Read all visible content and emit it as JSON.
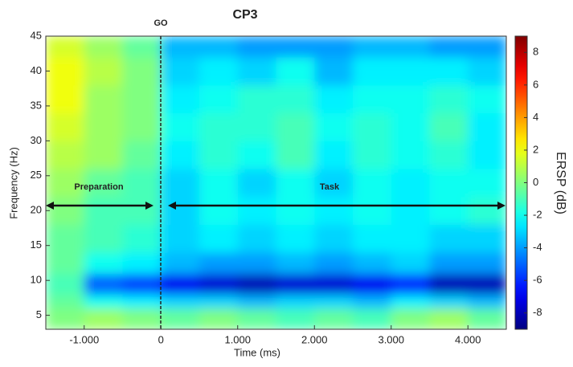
{
  "chart_data": {
    "type": "heatmap",
    "title": "CP3",
    "xlabel": "Time (ms)",
    "ylabel": "Frequency (Hz)",
    "colormap": "jet",
    "x_edges": [
      -1500,
      -1000,
      -500,
      0,
      500,
      1000,
      1500,
      2000,
      2500,
      3000,
      3500,
      4000,
      4500
    ],
    "y_edges": [
      3,
      6,
      8,
      11,
      14,
      18,
      22,
      26,
      30,
      34,
      38,
      42,
      45
    ],
    "values": [
      [
        0,
        0.5,
        0,
        -0.5,
        0,
        -0.5,
        -1,
        -0.5,
        -1,
        0,
        0.5,
        -0.5
      ],
      [
        -0.5,
        -2,
        -2.5,
        -3,
        -3,
        -3.5,
        -3,
        -3,
        -3.5,
        -2.5,
        -3,
        -3.5
      ],
      [
        -1,
        -5,
        -5.5,
        -7,
        -7.5,
        -8,
        -7.5,
        -7.5,
        -7,
        -6,
        -8,
        -8
      ],
      [
        -0.5,
        -2,
        -2.5,
        -3.5,
        -4,
        -4,
        -3.5,
        -4,
        -3.5,
        -3,
        -4,
        -4
      ],
      [
        -0.5,
        -1,
        -1.5,
        -3,
        -2.5,
        -3,
        -2.5,
        -3,
        -2.5,
        -2.5,
        -3,
        -3
      ],
      [
        0,
        -1,
        -1,
        -3,
        -2,
        -2.5,
        -2,
        -2.5,
        -2,
        -2.5,
        -2,
        -1.5
      ],
      [
        0.5,
        -0.5,
        -1,
        -3,
        -2,
        -3,
        -2,
        -3,
        -2,
        -2.5,
        -2,
        -2
      ],
      [
        1,
        0.5,
        -0.5,
        -2.5,
        -1.5,
        -2,
        -1,
        -2.5,
        -1.5,
        -2,
        -1.5,
        -2.5
      ],
      [
        1.5,
        0.5,
        0,
        -2,
        -1.5,
        -1.5,
        -1,
        -2,
        -1.5,
        -2,
        -1,
        -2.5
      ],
      [
        2,
        0.5,
        0,
        -2.5,
        -2,
        -1.5,
        -1.5,
        -2.5,
        -2,
        -2,
        -1.5,
        -2
      ],
      [
        2,
        1,
        0,
        -3,
        -2.5,
        -3,
        -2,
        -3.5,
        -2.5,
        -2.5,
        -2.5,
        -3
      ],
      [
        1.5,
        0.5,
        -0.5,
        -3.5,
        -3.5,
        -4,
        -4,
        -4,
        -3.5,
        -3.5,
        -4,
        -4
      ]
    ],
    "xlim": [
      -1500,
      4500
    ],
    "ylim": [
      3,
      45
    ],
    "xticks": [
      {
        "value": -1000,
        "label": "-1.000"
      },
      0,
      {
        "value": 1000,
        "label": "1.000"
      },
      {
        "value": 2000,
        "label": "2.000"
      },
      {
        "value": 3000,
        "label": "3.000"
      },
      {
        "value": 4000,
        "label": "4.000"
      }
    ],
    "yticks": [
      5,
      10,
      15,
      20,
      25,
      30,
      35,
      40,
      45
    ],
    "colorbar": {
      "label": "ERSP (dB)",
      "lim": [
        -9,
        9
      ],
      "ticks": [
        -8,
        -6,
        -4,
        -2,
        0,
        2,
        4,
        6,
        8
      ]
    },
    "annotations": [
      "GO",
      "Preparation",
      "Task"
    ]
  }
}
